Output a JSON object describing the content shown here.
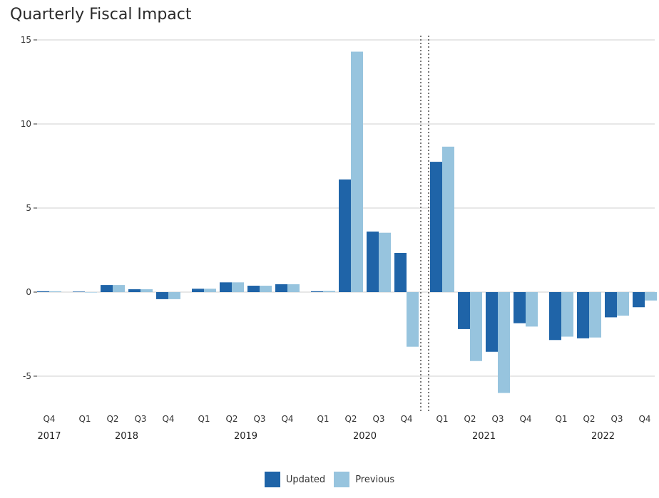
{
  "chart_data": {
    "type": "bar",
    "title": "Quarterly Fiscal Impact",
    "xlabel": "",
    "ylabel": "",
    "ylim": [
      -7,
      15.5
    ],
    "yticks": [
      -5,
      0,
      5,
      10,
      15
    ],
    "ytick_labels": [
      "-5",
      "0",
      "5",
      "10",
      "15"
    ],
    "grid": true,
    "legend_position": "bottom-center",
    "colors": {
      "Updated": "#1f64a8",
      "Previous": "#97c4de"
    },
    "categories": [
      "Q4",
      "Q1",
      "Q2",
      "Q3",
      "Q4",
      "Q1",
      "Q2",
      "Q3",
      "Q4",
      "Q1",
      "Q2",
      "Q3",
      "Q4",
      "Q1",
      "Q2",
      "Q3",
      "Q4",
      "Q1",
      "Q2",
      "Q3",
      "Q4"
    ],
    "years": [
      {
        "label": "2017",
        "from": 0,
        "to": 0
      },
      {
        "label": "2018",
        "from": 1,
        "to": 4
      },
      {
        "label": "2019",
        "from": 5,
        "to": 8
      },
      {
        "label": "2020",
        "from": 9,
        "to": 12
      },
      {
        "label": "2021",
        "from": 13,
        "to": 16
      },
      {
        "label": "2022",
        "from": 17,
        "to": 20
      }
    ],
    "projection_divider_after_index": 12,
    "series": [
      {
        "name": "Updated",
        "values": [
          0.05,
          0.03,
          0.42,
          0.17,
          -0.42,
          0.2,
          0.58,
          0.38,
          0.47,
          0.05,
          6.7,
          3.6,
          2.33,
          7.75,
          -2.2,
          -3.55,
          -1.85,
          -2.85,
          -2.75,
          -1.5,
          -0.9
        ]
      },
      {
        "name": "Previous",
        "values": [
          0.05,
          0.0,
          0.42,
          0.17,
          -0.42,
          0.2,
          0.58,
          0.38,
          0.47,
          0.07,
          14.3,
          3.53,
          -3.25,
          8.65,
          -4.1,
          -6.0,
          -2.05,
          -2.65,
          -2.7,
          -1.4,
          -0.5
        ]
      }
    ]
  }
}
